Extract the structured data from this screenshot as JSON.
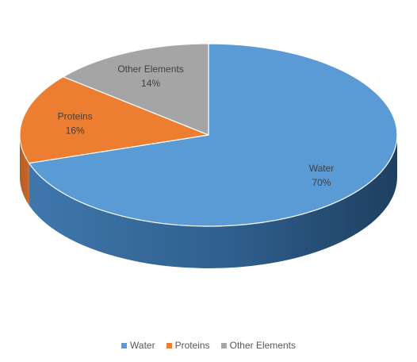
{
  "chart_data": {
    "type": "pie",
    "style": "3d",
    "categories": [
      "Water",
      "Proteins",
      "Other Elements"
    ],
    "values": [
      70,
      16,
      14
    ],
    "labels": [
      "70%",
      "16%",
      "14%"
    ],
    "colors": [
      "#5b9bd5",
      "#ed7d31",
      "#a5a5a5"
    ],
    "legend_position": "bottom",
    "title": ""
  },
  "legend": {
    "items": [
      {
        "label": "Water",
        "color": "#5b9bd5"
      },
      {
        "label": "Proteins",
        "color": "#ed7d31"
      },
      {
        "label": "Other Elements",
        "color": "#a5a5a5"
      }
    ]
  }
}
